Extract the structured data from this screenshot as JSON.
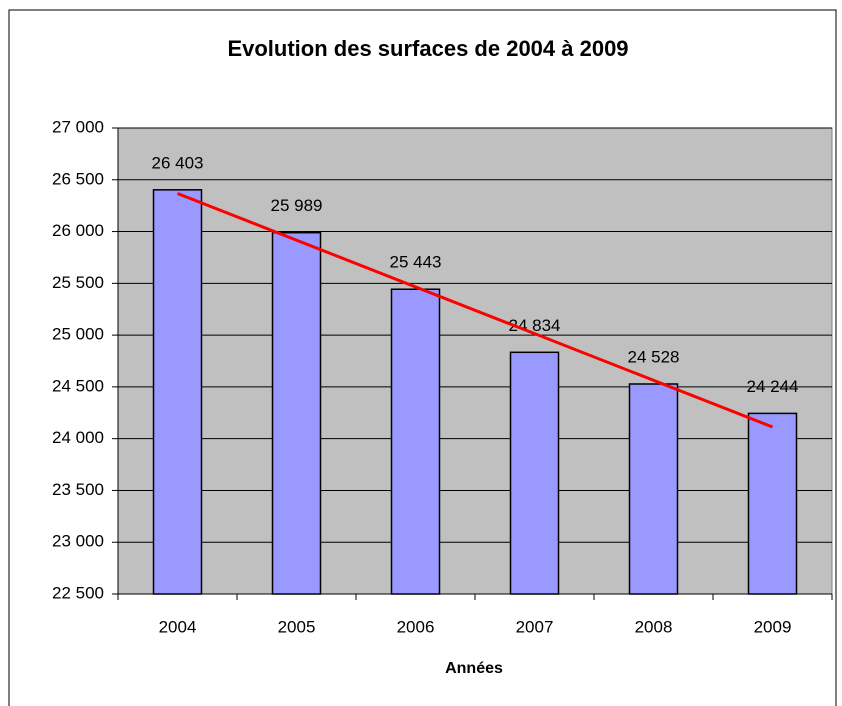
{
  "chart_data": {
    "type": "bar",
    "title": "Evolution des surfaces de 2004 à 2009",
    "x_label": "Années",
    "categories": [
      "2004",
      "2005",
      "2006",
      "2007",
      "2008",
      "2009"
    ],
    "values": [
      26403,
      25989,
      25443,
      24834,
      24528,
      24244
    ],
    "value_labels": [
      "26 403",
      "25 989",
      "25 443",
      "24 834",
      "24 528",
      "24 244"
    ],
    "color": "#9999ff",
    "plot_background": "#c0c0c0",
    "grid": true,
    "trendline": true,
    "trendline_color": "#ff0000",
    "ylim": [
      22500,
      27000
    ],
    "yticks": [
      {
        "value": 22500,
        "label": "22 500"
      },
      {
        "value": 23000,
        "label": "23 000"
      },
      {
        "value": 23500,
        "label": "23 500"
      },
      {
        "value": 24000,
        "label": "24 000"
      },
      {
        "value": 24500,
        "label": "24 500"
      },
      {
        "value": 25000,
        "label": "25 000"
      },
      {
        "value": 25500,
        "label": "25 500"
      },
      {
        "value": 26000,
        "label": "26 000"
      },
      {
        "value": 26500,
        "label": "26 500"
      },
      {
        "value": 27000,
        "label": "27 000"
      }
    ]
  }
}
